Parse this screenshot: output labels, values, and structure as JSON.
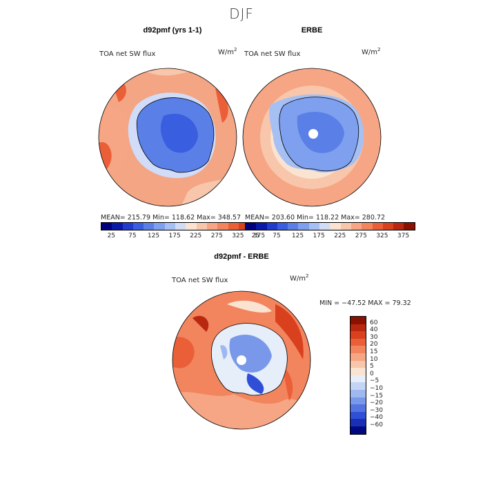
{
  "title": "DJF",
  "panels": {
    "left": {
      "title": "d92pmf (yrs 1-1)",
      "field": "TOA net SW flux",
      "unit": "W/m",
      "unit_sup": "2",
      "stats": "MEAN= 215.79   Min= 118.62   Max= 348.57"
    },
    "right": {
      "title": "ERBE",
      "field": "TOA net SW flux",
      "unit": "W/m",
      "unit_sup": "2",
      "stats": "MEAN= 203.60   Min= 118.22   Max= 280.72"
    },
    "diff": {
      "title": "d92pmf - ERBE",
      "field": "TOA net SW flux",
      "unit": "W/m",
      "unit_sup": "2",
      "stats": "MIN = −47.52  MAX =  79.32"
    }
  },
  "colorbar_abs": {
    "ticks": [
      "25",
      "75",
      "125",
      "175",
      "225",
      "275",
      "325",
      "375"
    ],
    "colors": [
      "#00007f",
      "#0a1aa8",
      "#1f3ccc",
      "#3a5ee0",
      "#5a80e8",
      "#7fa0ee",
      "#a6c0f4",
      "#d0dcf8",
      "#fbe3d2",
      "#f8c6aa",
      "#f6a684",
      "#f2845e",
      "#ea5f38",
      "#d8401e",
      "#b82810",
      "#8a1000"
    ]
  },
  "colorbar_diff": {
    "labels": [
      "60",
      "40",
      "30",
      "20",
      "15",
      "10",
      "5",
      "0",
      "−5",
      "−10",
      "−15",
      "−20",
      "−30",
      "−40",
      "−60"
    ],
    "colors": [
      "#8a1000",
      "#b82810",
      "#d8401e",
      "#ea5f38",
      "#f2845e",
      "#f6a684",
      "#f8c6aa",
      "#fbe3d2",
      "#e6eefa",
      "#c4d4f5",
      "#a0b8f0",
      "#7a98ea",
      "#5474e2",
      "#2f4fd6",
      "#1a2fb4",
      "#000a80"
    ]
  },
  "map_colors": {
    "ocean_abs": "#f3a584",
    "ocean_abs_light": "#f8c6aa",
    "ice_abs": "#5a80e8",
    "ice_abs_dark": "#3a5ee0",
    "diff_pos": "#e55a32",
    "diff_neg": "#4a6ee0"
  }
}
